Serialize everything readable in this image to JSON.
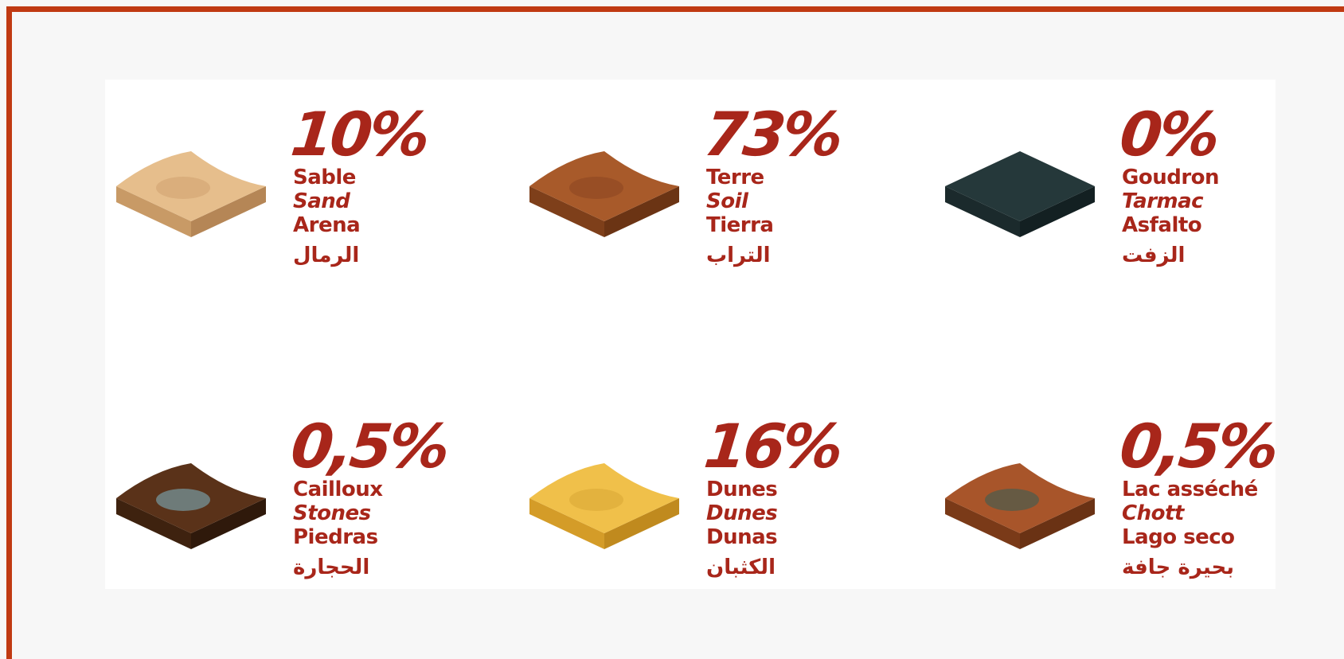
{
  "items": [
    {
      "percent": "10%",
      "fr": "Sable",
      "en": "Sand",
      "es": "Arena",
      "ar": "الرمال"
    },
    {
      "percent": "73%",
      "fr": "Terre",
      "en": "Soil",
      "es": "Tierra",
      "ar": "التراب"
    },
    {
      "percent": "0%",
      "fr": "Goudron",
      "en": "Tarmac",
      "es": "Asfalto",
      "ar": "الزفت"
    },
    {
      "percent": "0,5%",
      "fr": "Cailloux",
      "en": "Stones",
      "es": "Piedras",
      "ar": "الحجارة"
    },
    {
      "percent": "16%",
      "fr": "Dunes",
      "en": "Dunes",
      "es": "Dunas",
      "ar": "الكثبان"
    },
    {
      "percent": "0,5%",
      "fr": "Lac asséché",
      "en": "Chott",
      "es": "Lago seco",
      "ar": "بحيرة جافة"
    }
  ]
}
